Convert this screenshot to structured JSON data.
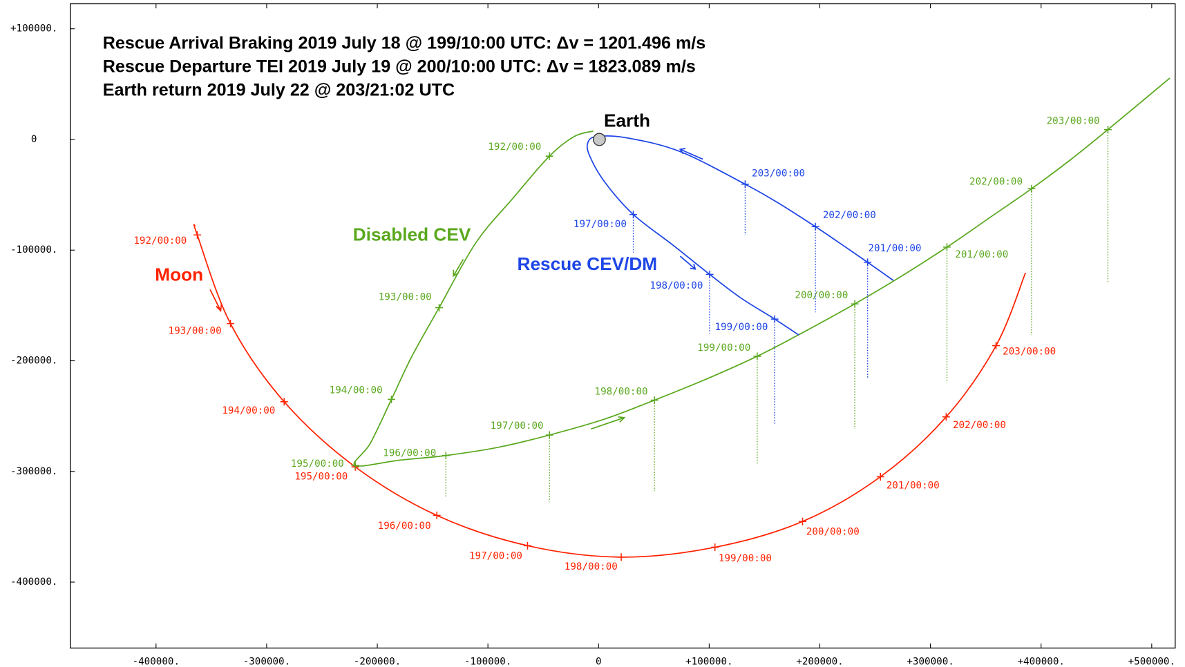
{
  "chart_data": {
    "type": "trajectory",
    "title_lines": [
      "Rescue Arrival Braking 2019 July 18 @ 199/10:00 UTC: Δv = 1201.496 m/s",
      "Rescue Departure TEI 2019 July 19 @ 200/10:00 UTC: Δv = 1823.089 m/s",
      "Earth return 2019 July 22 @ 203/21:02 UTC"
    ],
    "xlim": [
      -477500,
      521200
    ],
    "ylim": [
      -459600,
      122600
    ],
    "xticks": [
      {
        "value": -400000,
        "label": "-400000."
      },
      {
        "value": -300000,
        "label": "-300000."
      },
      {
        "value": -200000,
        "label": "-200000."
      },
      {
        "value": -100000,
        "label": "-100000."
      },
      0,
      {
        "value": 100000,
        "label": "+100000."
      },
      {
        "value": 200000,
        "label": "+200000."
      },
      {
        "value": 300000,
        "label": "+300000."
      },
      {
        "value": 400000,
        "label": "+400000."
      },
      {
        "value": 500000,
        "label": "+500000."
      }
    ],
    "yticks": [
      {
        "value": 100000,
        "label": "+100000."
      },
      0,
      {
        "value": -100000,
        "label": "-100000."
      },
      {
        "value": -200000,
        "label": "-200000."
      },
      {
        "value": -300000,
        "label": "-300000."
      },
      {
        "value": -400000,
        "label": "-400000."
      }
    ],
    "earth": {
      "label": "Earth",
      "x": 700,
      "y": 0
    },
    "series": [
      {
        "name": "Moon",
        "color": "#ff2200",
        "x": [
          -364800,
          -362700,
          -332700,
          -284200,
          -219900,
          -146200,
          -64200,
          20500,
          105200,
          184400,
          254800,
          314200,
          359300,
          385900
        ],
        "y": [
          -77400,
          -86300,
          -166400,
          -237000,
          -295900,
          -339700,
          -367100,
          -377400,
          -368500,
          -345200,
          -304800,
          -250700,
          -186300,
          -120500
        ],
        "markers": {
          "labels": [
            "192/00:00",
            "193/00:00",
            "194/00:00",
            "195/00:00",
            "196/00:00",
            "197/00:00",
            "198/00:00",
            "199/00:00",
            "200/00:00",
            "201/00:00",
            "202/00:00",
            "203/00:00"
          ],
          "x": [
            -362700,
            -332700,
            -284200,
            -219900,
            -146200,
            -64200,
            20500,
            105200,
            184400,
            254800,
            314200,
            359300
          ],
          "y": [
            -86300,
            -166400,
            -237000,
            -295900,
            -339700,
            -367100,
            -377400,
            -368500,
            -345200,
            -304800,
            -250700,
            -186300
          ]
        }
      },
      {
        "name": "Disabled CEV",
        "color": "#5aa81e",
        "x": [
          -4800,
          -21900,
          -44400,
          -76500,
          -110700,
          -144100,
          -168700,
          -187200,
          -206300,
          -220000,
          -179000,
          -138000,
          -90200,
          -44400,
          5500,
          50500,
          97700,
          143400,
          183100,
          231600,
          271900,
          314900,
          353800,
          391400,
          425500,
          460400,
          516400
        ],
        "y": [
          7500,
          2700,
          -15100,
          -52100,
          -93100,
          -152000,
          -195900,
          -234900,
          -274600,
          -294500,
          -289700,
          -285600,
          -278100,
          -267100,
          -252700,
          -235600,
          -216400,
          -195900,
          -175300,
          -148600,
          -124700,
          -97300,
          -70500,
          -44500,
          -19200,
          8900,
          55500
        ],
        "markers": {
          "labels": [
            "192/00:00",
            "193/00:00",
            "194/00:00",
            "195/00:00",
            "196/00:00",
            "197/00:00",
            "198/00:00",
            "199/00:00",
            "200/00:00",
            "201/00:00",
            "202/00:00",
            "203/00:00"
          ],
          "x": [
            -44400,
            -144100,
            -187200,
            -220000,
            -138000,
            -44400,
            50500,
            143400,
            231600,
            314900,
            391400,
            460400
          ],
          "y": [
            -15100,
            -152000,
            -234900,
            -294500,
            -285600,
            -267100,
            -235600,
            -195900,
            -148600,
            -97300,
            -44500,
            8900
          ],
          "drop": [
            null,
            null,
            null,
            null,
            -322600,
            -327400,
            -317800,
            -293100,
            -261600,
            -219900,
            -176700,
            -129400
          ]
        }
      },
      {
        "name": "Rescue CEV/DM",
        "color": "#1e46e6",
        "x": [
          181000,
          159200,
          128400,
          100400,
          66900,
          31400,
          5500,
          -8200,
          -9600,
          -1400,
          26000,
          73800,
          132500,
          162600,
          196000,
          217200,
          243200,
          266400
        ],
        "y": [
          -176700,
          -162300,
          -143100,
          -121900,
          -95200,
          -67800,
          -38400,
          -14400,
          -2700,
          2700,
          1400,
          -11000,
          -40400,
          -57500,
          -78800,
          -93100,
          -111000,
          -127400
        ],
        "markers": {
          "labels": [
            "197/00:00",
            "198/00:00",
            "199/00:00",
            "201/00:00",
            "202/00:00",
            "203/00:00"
          ],
          "x": [
            31400,
            100400,
            159200,
            243200,
            196000,
            132500
          ],
          "y": [
            -67800,
            -121900,
            -162300,
            -111000,
            -78800,
            -40400
          ],
          "drop": [
            -102100,
            -175300,
            -257500,
            -216400,
            -156200,
            -86300
          ]
        }
      }
    ]
  }
}
